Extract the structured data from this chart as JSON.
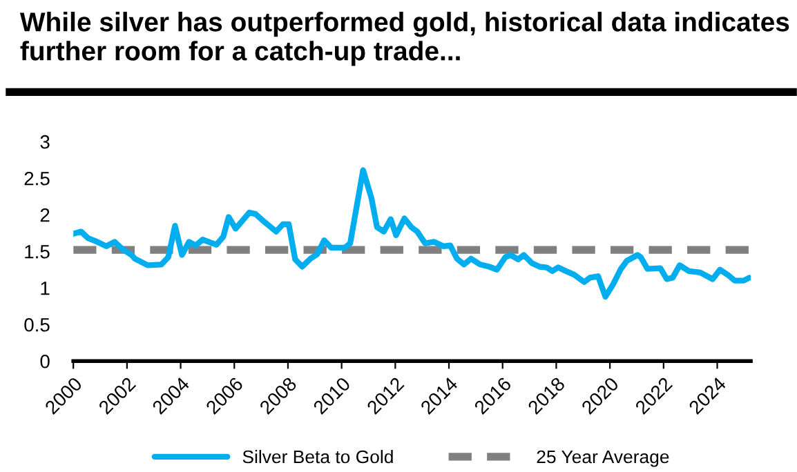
{
  "chart_data": {
    "type": "line",
    "title": "While silver has outperformed gold, historical data indicates further room for a catch-up trade...",
    "series": [
      {
        "name": "Silver Beta to Gold",
        "color": "#00aeef",
        "x": [
          2000.0,
          2000.29,
          2000.55,
          2000.89,
          2001.23,
          2001.54,
          2001.83,
          2002.17,
          2002.29,
          2002.77,
          2003.28,
          2003.54,
          2003.79,
          2004.05,
          2004.31,
          2004.56,
          2004.82,
          2005.33,
          2005.59,
          2005.79,
          2006.05,
          2006.56,
          2006.79,
          2007.13,
          2007.56,
          2007.81,
          2008.03,
          2008.27,
          2008.53,
          2008.84,
          2009.09,
          2009.35,
          2009.61,
          2010.12,
          2010.32,
          2010.8,
          2011.11,
          2011.32,
          2011.57,
          2011.83,
          2012.03,
          2012.34,
          2012.6,
          2012.82,
          2013.11,
          2013.45,
          2013.79,
          2014.05,
          2014.3,
          2014.56,
          2014.82,
          2015.16,
          2015.5,
          2015.79,
          2016.1,
          2016.3,
          2016.58,
          2016.79,
          2017.09,
          2017.38,
          2017.64,
          2017.85,
          2018.07,
          2018.36,
          2018.67,
          2019.04,
          2019.26,
          2019.56,
          2019.83,
          2020.12,
          2020.41,
          2020.63,
          2021.03,
          2021.15,
          2021.4,
          2021.88,
          2022.12,
          2022.34,
          2022.6,
          2022.94,
          2023.37,
          2023.83,
          2024.1,
          2024.39,
          2024.65,
          2024.99,
          2025.2
        ],
        "values": [
          1.74,
          1.77,
          1.68,
          1.63,
          1.57,
          1.63,
          1.53,
          1.45,
          1.4,
          1.31,
          1.32,
          1.42,
          1.85,
          1.45,
          1.63,
          1.58,
          1.66,
          1.59,
          1.7,
          1.97,
          1.81,
          2.03,
          2.01,
          1.9,
          1.77,
          1.87,
          1.87,
          1.39,
          1.29,
          1.4,
          1.46,
          1.65,
          1.55,
          1.55,
          1.61,
          2.61,
          2.23,
          1.83,
          1.77,
          1.94,
          1.72,
          1.95,
          1.83,
          1.77,
          1.61,
          1.63,
          1.57,
          1.58,
          1.4,
          1.32,
          1.4,
          1.32,
          1.29,
          1.25,
          1.42,
          1.45,
          1.39,
          1.45,
          1.34,
          1.29,
          1.28,
          1.23,
          1.28,
          1.23,
          1.18,
          1.08,
          1.14,
          1.16,
          0.88,
          1.05,
          1.26,
          1.37,
          1.45,
          1.42,
          1.26,
          1.27,
          1.12,
          1.14,
          1.31,
          1.23,
          1.21,
          1.12,
          1.25,
          1.18,
          1.1,
          1.1,
          1.14
        ]
      }
    ],
    "ref_lines": [
      {
        "axis": "y",
        "value": 1.52,
        "label": "25 Year Average",
        "color": "#808080",
        "line_style": "dashed"
      }
    ],
    "xlim": [
      2000,
      2025.25
    ],
    "xticks": [
      2000,
      2002,
      2004,
      2006,
      2008,
      2010,
      2012,
      2014,
      2016,
      2018,
      2020,
      2022,
      2024
    ],
    "ylim": [
      0,
      3
    ],
    "yticks": [
      0,
      0.5,
      1,
      1.5,
      2,
      2.5,
      3
    ],
    "grid": false,
    "legend": "bottom",
    "marker": "none",
    "line_style": "solid"
  }
}
